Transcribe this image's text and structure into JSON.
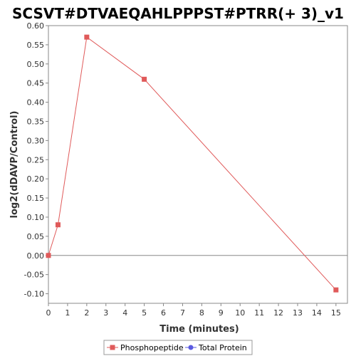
{
  "chart_data": {
    "type": "line",
    "title": "SCSVT#DTVAEQAHLPPPST#PTRR(+ 3)_v1",
    "xlabel": "Time (minutes)",
    "ylabel": "log2(dDAVP/Control)",
    "xlim": [
      0,
      15.6
    ],
    "ylim": [
      -0.125,
      0.6
    ],
    "x_ticks": [
      0,
      1,
      2,
      3,
      4,
      5,
      6,
      7,
      8,
      9,
      10,
      11,
      12,
      13,
      14,
      15
    ],
    "y_ticks": [
      -0.1,
      -0.05,
      0.0,
      0.05,
      0.1,
      0.15,
      0.2,
      0.25,
      0.3,
      0.35,
      0.4,
      0.45,
      0.5,
      0.55,
      0.6
    ],
    "zero_line": true,
    "legend_position": "bottom-center",
    "series": [
      {
        "name": "Phosphopeptide",
        "color": "#e05a5a",
        "marker": "square",
        "x": [
          0,
          0.5,
          2,
          5,
          15
        ],
        "y": [
          0.0,
          0.08,
          0.57,
          0.46,
          -0.09
        ]
      },
      {
        "name": "Total Protein",
        "color": "#5a5ae0",
        "marker": "circle",
        "x": [],
        "y": []
      }
    ]
  }
}
